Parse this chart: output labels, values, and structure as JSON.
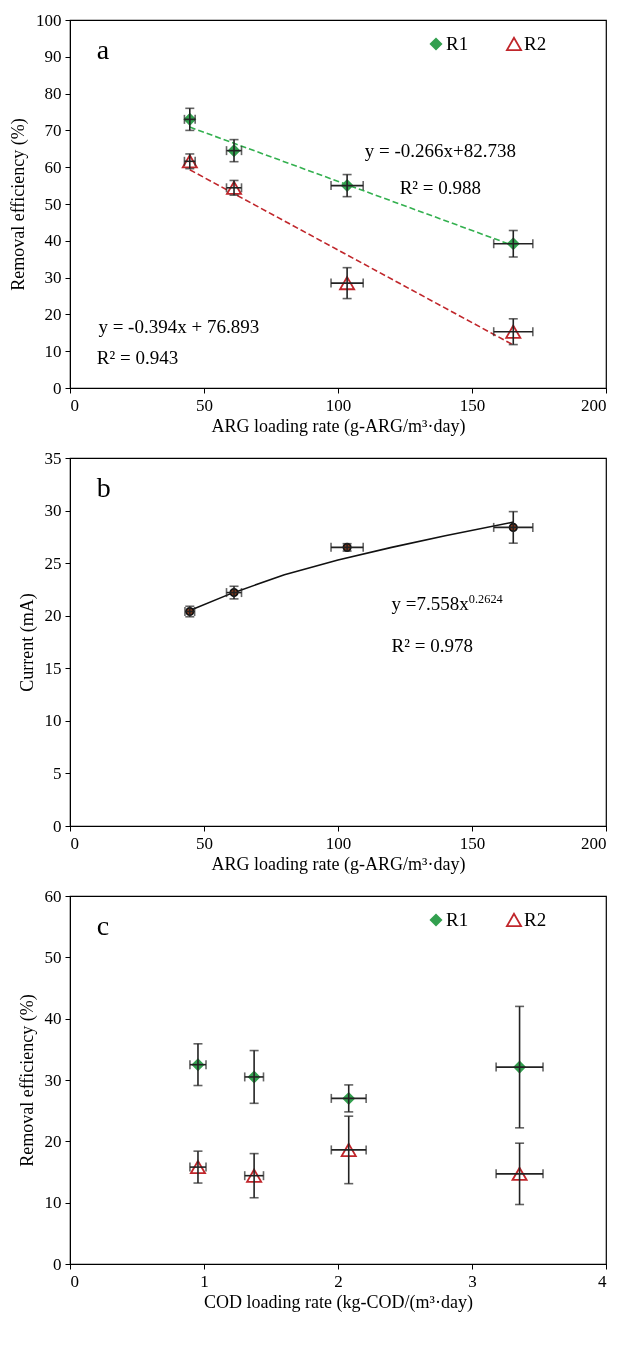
{
  "chart_data": [
    {
      "type": "scatter",
      "xlabel": "ARG loading rate (g-ARG/m³·day)",
      "ylabel": "Removal efficiency (%)",
      "xlim": [
        0,
        200
      ],
      "xticks": [
        0,
        50,
        100,
        150,
        200
      ],
      "ylim": [
        0,
        100
      ],
      "yticks": [
        0,
        10,
        20,
        30,
        40,
        50,
        60,
        70,
        80,
        90,
        100
      ],
      "legend": "top right",
      "annotations": [
        "a",
        "y = -0.266x+82.738",
        "R² = 0.988",
        "y = -0.394x + 76.893",
        "R² = 0.943"
      ],
      "series": [
        {
          "name": "R1",
          "type": "scatter",
          "marker": "diamond",
          "color": "#33a04f",
          "x": [
            44.7,
            61.2,
            103.4,
            165.4
          ],
          "values": [
            73,
            64.5,
            55,
            39.2
          ],
          "errors": [
            3,
            3,
            3,
            3.6
          ],
          "xerrors": [
            2,
            2.8,
            6,
            7.3
          ]
        },
        {
          "name": "R2",
          "type": "scatter",
          "marker": "triangle",
          "color": "#c0262b",
          "x": [
            44.7,
            61.2,
            103.4,
            165.4
          ],
          "values": [
            61.6,
            54.4,
            28.5,
            15.3
          ],
          "errors": [
            2,
            2,
            4.2,
            3.5
          ],
          "xerrors": [
            2,
            2.8,
            6,
            7.3
          ]
        },
        {
          "type": "line",
          "color": "#33b04f",
          "line_style": "dashed",
          "marker": "none",
          "x": [
            44.7,
            165.4
          ],
          "values": [
            70.9,
            38.7
          ]
        },
        {
          "type": "line",
          "color": "#c0262b",
          "line_style": "dashed",
          "marker": "none",
          "x": [
            44.7,
            165.4
          ],
          "values": [
            59.3,
            11.7
          ]
        }
      ]
    },
    {
      "type": "scatter",
      "xlabel": "ARG loading rate (g-ARG/m³·day)",
      "ylabel": "Current (mA)",
      "xlim": [
        0,
        200
      ],
      "xticks": [
        0,
        50,
        100,
        150,
        200
      ],
      "ylim": [
        0,
        35
      ],
      "yticks": [
        0,
        5,
        10,
        15,
        20,
        25,
        30,
        35
      ],
      "annotations": [
        "b",
        "y =7.558x$^{0.2624}$",
        "R² = 0.978"
      ],
      "series": [
        {
          "type": "scatter",
          "marker": "circle",
          "color": "#8b3a1a",
          "x": [
            44.7,
            61.2,
            103.4,
            165.4
          ],
          "values": [
            20.4,
            22.2,
            26.5,
            28.4
          ],
          "errors": [
            0.5,
            0.6,
            0.35,
            1.5
          ],
          "xerrors": [
            1.8,
            2.8,
            6,
            7.3
          ]
        },
        {
          "type": "line",
          "color": "#111111",
          "line_style": "solid",
          "marker": "none",
          "x": [
            44.7,
            60,
            80,
            100,
            120,
            140,
            165.4
          ],
          "values": [
            20.5,
            22.1,
            23.9,
            25.3,
            26.5,
            27.6,
            28.9
          ]
        }
      ]
    },
    {
      "type": "scatter",
      "xlabel": "COD loading rate (kg-COD/(m³·day)",
      "ylabel": "Removal efficiency (%)",
      "xlim": [
        0,
        4
      ],
      "xticks": [
        0,
        1,
        2,
        3,
        4
      ],
      "ylim": [
        0,
        60
      ],
      "yticks": [
        0,
        10,
        20,
        30,
        40,
        50,
        60
      ],
      "legend": "top right",
      "annotations": [
        "c"
      ],
      "series": [
        {
          "name": "R1",
          "type": "scatter",
          "marker": "diamond",
          "color": "#33a04f",
          "x": [
            0.955,
            1.374,
            2.08,
            3.355
          ],
          "values": [
            32.5,
            30.5,
            27,
            32.1
          ],
          "errors": [
            3.4,
            4.3,
            2.2,
            9.9
          ],
          "xerrors": [
            0.06,
            0.07,
            0.13,
            0.175
          ]
        },
        {
          "name": "R2",
          "type": "scatter",
          "marker": "triangle",
          "color": "#c0262b",
          "x": [
            0.955,
            1.374,
            2.08,
            3.355
          ],
          "values": [
            15.8,
            14.4,
            18.6,
            14.7
          ],
          "errors": [
            2.6,
            3.6,
            5.5,
            5
          ],
          "xerrors": [
            0.06,
            0.07,
            0.13,
            0.175
          ]
        }
      ]
    }
  ]
}
